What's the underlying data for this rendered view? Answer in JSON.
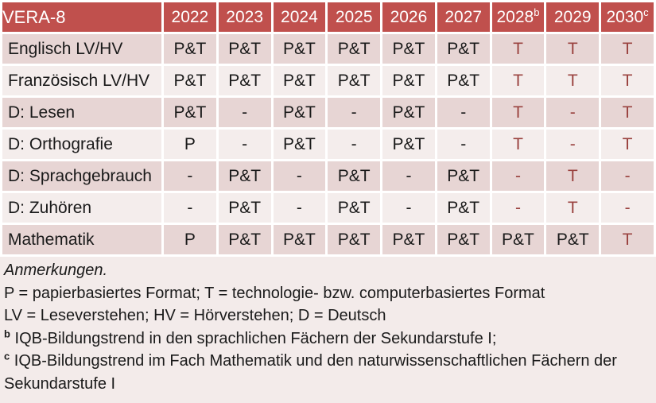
{
  "colors": {
    "header_bg": "#c0504d",
    "row_dark": "#e7d5d4",
    "row_light": "#f4edec",
    "notes_bg": "#f3ebea",
    "accent_text": "#9a423f"
  },
  "table": {
    "title": "VERA-8",
    "columns": [
      {
        "label": "2022",
        "sup": ""
      },
      {
        "label": "2023",
        "sup": ""
      },
      {
        "label": "2024",
        "sup": ""
      },
      {
        "label": "2025",
        "sup": ""
      },
      {
        "label": "2026",
        "sup": ""
      },
      {
        "label": "2027",
        "sup": ""
      },
      {
        "label": "2028",
        "sup": "b"
      },
      {
        "label": "2029",
        "sup": ""
      },
      {
        "label": "2030",
        "sup": "c"
      }
    ],
    "rows": [
      {
        "label": "Englisch LV/HV",
        "values": [
          "P&T",
          "P&T",
          "P&T",
          "P&T",
          "P&T",
          "P&T",
          "T",
          "T",
          "T"
        ],
        "red": [
          false,
          false,
          false,
          false,
          false,
          false,
          true,
          true,
          true
        ]
      },
      {
        "label": "Französisch LV/HV",
        "values": [
          "P&T",
          "P&T",
          "P&T",
          "P&T",
          "P&T",
          "P&T",
          "T",
          "T",
          "T"
        ],
        "red": [
          false,
          false,
          false,
          false,
          false,
          false,
          true,
          true,
          true
        ]
      },
      {
        "label": "D: Lesen",
        "values": [
          "P&T",
          "-",
          "P&T",
          "-",
          "P&T",
          "-",
          "T",
          "-",
          "T"
        ],
        "red": [
          false,
          false,
          false,
          false,
          false,
          false,
          true,
          true,
          true
        ]
      },
      {
        "label": "D: Orthografie",
        "values": [
          "P",
          "-",
          "P&T",
          "-",
          "P&T",
          "-",
          "T",
          "-",
          "T"
        ],
        "red": [
          false,
          false,
          false,
          false,
          false,
          false,
          true,
          true,
          true
        ]
      },
      {
        "label": "D: Sprachgebrauch",
        "values": [
          "-",
          "P&T",
          "-",
          "P&T",
          "-",
          "P&T",
          "-",
          "T",
          "-"
        ],
        "red": [
          false,
          false,
          false,
          false,
          false,
          false,
          true,
          true,
          true
        ]
      },
      {
        "label": "D: Zuhören",
        "values": [
          "-",
          "P&T",
          "-",
          "P&T",
          "-",
          "P&T",
          "-",
          "T",
          "-"
        ],
        "red": [
          false,
          false,
          false,
          false,
          false,
          false,
          true,
          true,
          true
        ]
      },
      {
        "label": "Mathematik",
        "values": [
          "P",
          "P&T",
          "P&T",
          "P&T",
          "P&T",
          "P&T",
          "P&T",
          "P&T",
          "T"
        ],
        "red": [
          false,
          false,
          false,
          false,
          false,
          false,
          false,
          false,
          true
        ]
      }
    ]
  },
  "notes": {
    "title": "Anmerkungen.",
    "format_legend": "P = papierbasiertes Format; T = technologie- bzw. computerbasiertes Format",
    "abbreviation_legend": "LV = Leseverstehen; HV = Hörverstehen; D = Deutsch",
    "footnote_b": {
      "marker": "b",
      "text": " IQB-Bildungstrend in den sprachlichen Fächern der Sekundarstufe I;"
    },
    "footnote_c": {
      "marker": "c",
      "text": " IQB-Bildungstrend im Fach Mathematik und den naturwissenschaftlichen Fächern der Sekundarstufe I"
    }
  }
}
